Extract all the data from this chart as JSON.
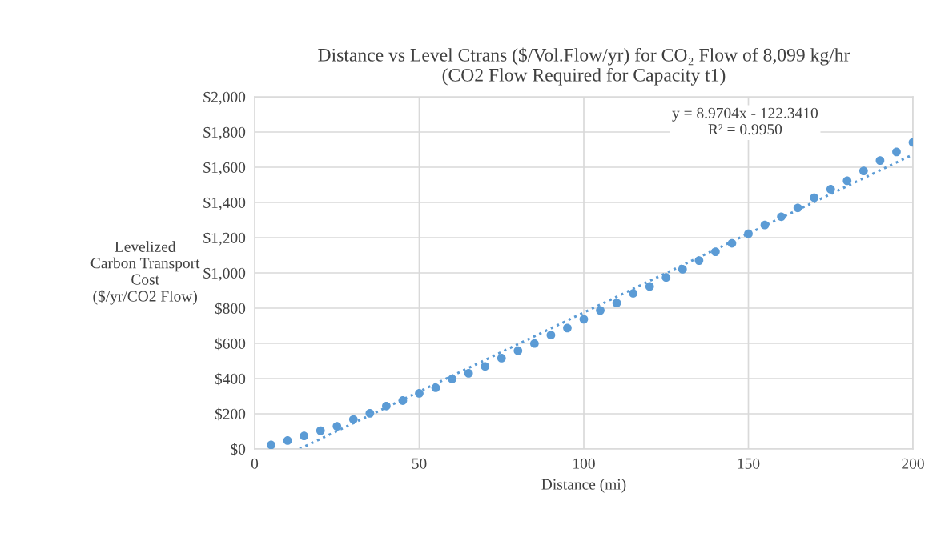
{
  "chart_data": {
    "type": "scatter",
    "title": "Distance vs Level Ctrans ($/Vol.Flow/yr) for CO₂ Flow of 8,099 kg/hr\n(CO2 Flow Required for Capacity t1)",
    "xlabel": "Distance (mi)",
    "ylabel": "Levelized\nCarbon Transport\nCost\n($/yr/CO2 Flow)",
    "x": [
      5,
      10,
      15,
      20,
      25,
      30,
      35,
      40,
      45,
      50,
      55,
      60,
      65,
      70,
      75,
      80,
      85,
      90,
      95,
      100,
      105,
      110,
      115,
      120,
      125,
      130,
      135,
      140,
      145,
      150,
      155,
      160,
      165,
      170,
      175,
      180,
      185,
      190,
      195,
      200
    ],
    "series": [
      {
        "color": "#5b9bd5",
        "marker": "circle",
        "values": [
          23,
          48,
          74,
          104,
          129,
          168,
          203,
          244,
          275,
          316,
          348,
          398,
          430,
          469,
          516,
          558,
          599,
          647,
          687,
          737,
          787,
          829,
          884,
          923,
          974,
          1021,
          1070,
          1120,
          1168,
          1222,
          1272,
          1319,
          1369,
          1427,
          1475,
          1523,
          1579,
          1638,
          1687,
          1741
        ]
      },
      {
        "type": "line",
        "color": "#5b9bd5",
        "line_style": "dotted",
        "marker": "none",
        "x": [
          13.64,
          200
        ],
        "values": [
          0,
          1672
        ]
      }
    ],
    "xlim": [
      0,
      200
    ],
    "xticks": [
      0,
      50,
      100,
      150,
      200
    ],
    "ylim": [
      0,
      2000
    ],
    "yticks": [
      {
        "value": 0,
        "label": "$0"
      },
      {
        "value": 200,
        "label": "$200"
      },
      {
        "value": 400,
        "label": "$400"
      },
      {
        "value": 600,
        "label": "$600"
      },
      {
        "value": 800,
        "label": "$800"
      },
      {
        "value": 1000,
        "label": "$1,000"
      },
      {
        "value": 1200,
        "label": "$1,200"
      },
      {
        "value": 1400,
        "label": "$1,400"
      },
      {
        "value": 1600,
        "label": "$1,600"
      },
      {
        "value": 1800,
        "label": "$1,800"
      },
      {
        "value": 2000,
        "label": "$2,000"
      }
    ],
    "grid": true,
    "annotations": [
      "y = 8.9704x - 122.3410\nR² = 0.9950"
    ]
  }
}
